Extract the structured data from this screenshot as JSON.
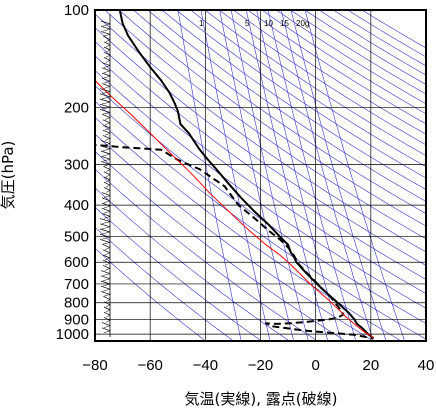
{
  "chart_data": {
    "type": "line",
    "title": "",
    "xlabel": "気温(実線), 露点(破線)",
    "ylabel": "気圧(hPa)",
    "xlim": [
      -80,
      40
    ],
    "ylim": [
      1050,
      100
    ],
    "yscale": "log",
    "grid": true,
    "x_ticks": [
      "−80",
      "−60",
      "−40",
      "−20",
      "0",
      "20",
      "40"
    ],
    "y_ticks": [
      "100",
      "200",
      "300",
      "400",
      "500",
      "600",
      "700",
      "800",
      "900",
      "1000"
    ],
    "mixing_ratio_labels": [
      "1",
      "5",
      "10",
      "15",
      "20g"
    ],
    "colors": {
      "temperature": "#000000",
      "dewpoint": "#000000",
      "parcel": "#ff0000",
      "guide_lines": "#3333cc",
      "grid": "#000000"
    },
    "series": [
      {
        "style": "solid",
        "points": [
          [
            -71,
            100
          ],
          [
            -70,
            110
          ],
          [
            -68,
            120
          ],
          [
            -64,
            135
          ],
          [
            -60,
            150
          ],
          [
            -56,
            165
          ],
          [
            -53,
            180
          ],
          [
            -51,
            195
          ],
          [
            -50,
            205
          ],
          [
            -49,
            225
          ],
          [
            -46,
            240
          ],
          [
            -42,
            270
          ],
          [
            -39,
            290
          ],
          [
            -36,
            310
          ],
          [
            -32,
            340
          ],
          [
            -27,
            380
          ],
          [
            -22,
            420
          ],
          [
            -17,
            460
          ],
          [
            -13,
            500
          ],
          [
            -10,
            530
          ],
          [
            -9,
            560
          ],
          [
            -8,
            575
          ],
          [
            -7,
            600
          ],
          [
            -4,
            640
          ],
          [
            -1,
            680
          ],
          [
            2,
            720
          ],
          [
            5,
            760
          ],
          [
            8,
            800
          ],
          [
            10,
            830
          ],
          [
            12,
            860
          ],
          [
            14,
            900
          ],
          [
            15,
            930
          ],
          [
            17,
            960
          ],
          [
            19,
            1000
          ],
          [
            21,
            1030
          ]
        ]
      },
      {
        "style": "dashed",
        "points": [
          [
            -82,
            260
          ],
          [
            -70,
            265
          ],
          [
            -56,
            270
          ],
          [
            -50,
            290
          ],
          [
            -42,
            310
          ],
          [
            -33,
            350
          ],
          [
            -28,
            400
          ],
          [
            -22,
            440
          ],
          [
            -17,
            480
          ],
          [
            -13,
            510
          ],
          [
            -10,
            540
          ],
          [
            -8,
            570
          ],
          [
            -6,
            610
          ],
          [
            -3,
            650
          ],
          [
            0,
            690
          ],
          [
            2,
            720
          ],
          [
            5,
            760
          ],
          [
            7,
            800
          ],
          [
            9,
            840
          ],
          [
            10,
            870
          ],
          [
            8,
            890
          ],
          [
            5,
            900
          ],
          [
            0,
            910
          ],
          [
            -4,
            918
          ],
          [
            -9,
            925
          ],
          [
            -14,
            930
          ],
          [
            -18,
            925
          ],
          [
            -16,
            945
          ],
          [
            -10,
            960
          ],
          [
            -4,
            975
          ],
          [
            2,
            985
          ],
          [
            8,
            995
          ],
          [
            14,
            1005
          ],
          [
            18,
            1020
          ],
          [
            21,
            1030
          ]
        ]
      },
      {
        "style": "solid",
        "points": [
          [
            -80,
            165
          ],
          [
            -74,
            185
          ],
          [
            -67,
            210
          ],
          [
            -60,
            240
          ],
          [
            -53,
            275
          ],
          [
            -45,
            320
          ],
          [
            -38,
            370
          ],
          [
            -30,
            430
          ],
          [
            -24,
            480
          ],
          [
            -18,
            530
          ],
          [
            -13,
            570
          ],
          [
            -9,
            610
          ],
          [
            -5,
            660
          ],
          [
            -2,
            700
          ],
          [
            2,
            750
          ],
          [
            5,
            790
          ],
          [
            7,
            820
          ],
          [
            9,
            850
          ],
          [
            10,
            870
          ],
          [
            12,
            900
          ],
          [
            14,
            930
          ],
          [
            16,
            960
          ],
          [
            18,
            990
          ],
          [
            20,
            1010
          ],
          [
            21,
            1030
          ]
        ]
      }
    ]
  }
}
